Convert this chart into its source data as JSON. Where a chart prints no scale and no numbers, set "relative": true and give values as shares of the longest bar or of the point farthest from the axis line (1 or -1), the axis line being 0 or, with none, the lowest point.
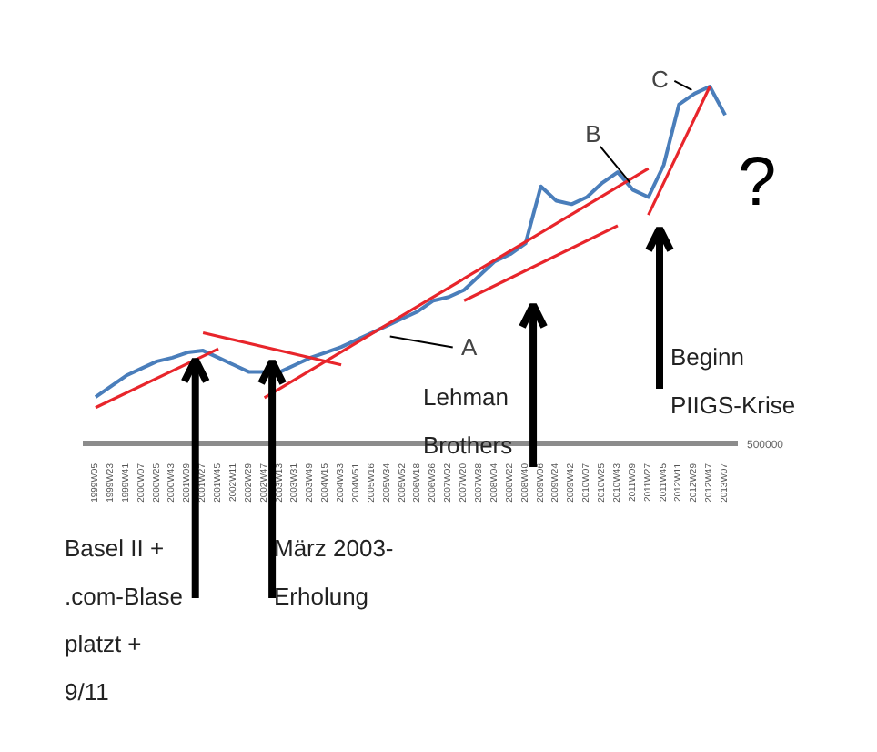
{
  "chart_data": {
    "type": "line",
    "relative": true,
    "grid": false,
    "marker": "none",
    "line_style": "solid",
    "categories": [
      "1999W05",
      "1999W23",
      "1999W41",
      "2000W07",
      "2000W25",
      "2000W43",
      "2001W09",
      "2001W27",
      "2001W45",
      "2002W11",
      "2002W29",
      "2002W47",
      "2003W13",
      "2003W31",
      "2003W49",
      "2004W15",
      "2004W33",
      "2004W51",
      "2005W16",
      "2005W34",
      "2005W52",
      "2006W18",
      "2006W36",
      "2007W02",
      "2007W20",
      "2007W38",
      "2008W04",
      "2008W22",
      "2008W40",
      "2009W06",
      "2009W24",
      "2009W42",
      "2010W07",
      "2010W25",
      "2010W43",
      "2011W09",
      "2011W27",
      "2011W45",
      "2012W11",
      "2012W29",
      "2012W47",
      "2013W07"
    ],
    "series": [
      {
        "color": "#4a7ebb",
        "values": [
          0.13,
          0.16,
          0.19,
          0.21,
          0.23,
          0.24,
          0.255,
          0.26,
          0.24,
          0.22,
          0.2,
          0.2,
          0.2,
          0.22,
          0.24,
          0.255,
          0.27,
          0.29,
          0.31,
          0.33,
          0.35,
          0.37,
          0.4,
          0.41,
          0.43,
          0.47,
          0.51,
          0.53,
          0.56,
          0.72,
          0.68,
          0.67,
          0.69,
          0.73,
          0.76,
          0.71,
          0.69,
          0.78,
          0.95,
          0.98,
          1.0,
          0.92
        ]
      },
      {
        "type": "line",
        "color": "#e8252b",
        "values": [
          0.1,
          null,
          null,
          null,
          null,
          null,
          null,
          null,
          0.265,
          null,
          null,
          null,
          null,
          null,
          null,
          null,
          null,
          null,
          null,
          null,
          null,
          null,
          null,
          null,
          null,
          null,
          null,
          null,
          null,
          null,
          null,
          null,
          null,
          null,
          null,
          null,
          null,
          null,
          null,
          null,
          null,
          null
        ]
      },
      {
        "type": "line",
        "color": "#e8252b",
        "values": [
          null,
          null,
          null,
          null,
          null,
          null,
          null,
          0.31,
          null,
          null,
          null,
          null,
          null,
          null,
          null,
          null,
          0.22,
          null,
          null,
          null,
          null,
          null,
          null,
          null,
          null,
          null,
          null,
          null,
          null,
          null,
          null,
          null,
          null,
          null,
          null,
          null,
          null,
          null,
          null,
          null,
          null,
          null
        ]
      },
      {
        "type": "line",
        "color": "#e8252b",
        "values": [
          null,
          null,
          null,
          null,
          null,
          null,
          null,
          null,
          null,
          null,
          null,
          0.128,
          null,
          null,
          null,
          null,
          null,
          null,
          null,
          null,
          null,
          null,
          null,
          null,
          null,
          null,
          null,
          null,
          null,
          null,
          null,
          null,
          null,
          null,
          null,
          null,
          0.77,
          null,
          null,
          null,
          null,
          null
        ]
      },
      {
        "type": "line",
        "color": "#e8252b",
        "values": [
          null,
          null,
          null,
          null,
          null,
          null,
          null,
          null,
          null,
          null,
          null,
          null,
          null,
          null,
          null,
          null,
          null,
          null,
          null,
          null,
          null,
          null,
          null,
          null,
          0.4,
          null,
          null,
          null,
          null,
          null,
          null,
          null,
          null,
          null,
          0.61,
          null,
          null,
          null,
          null,
          null,
          null,
          null
        ]
      },
      {
        "type": "line",
        "color": "#e8252b",
        "values": [
          null,
          null,
          null,
          null,
          null,
          null,
          null,
          null,
          null,
          null,
          null,
          null,
          null,
          null,
          null,
          null,
          null,
          null,
          null,
          null,
          null,
          null,
          null,
          null,
          null,
          null,
          null,
          null,
          null,
          null,
          null,
          null,
          null,
          null,
          null,
          null,
          0.64,
          null,
          null,
          null,
          1.0,
          null
        ]
      }
    ],
    "annotations": [
      "Basel II +\n.com-Blase\nplatzt +\n9/11",
      "März 2003-\nErholung",
      "Lehman\nBrothers",
      "Beginn\nPIIGS-Krise",
      {
        "text": "A",
        "x": "2005W34",
        "y": 0.3
      },
      {
        "text": "B",
        "x": "2011W09",
        "y": 0.73
      },
      {
        "text": "C",
        "x": "2012W29",
        "y": 0.99
      },
      "?",
      "500000"
    ]
  }
}
